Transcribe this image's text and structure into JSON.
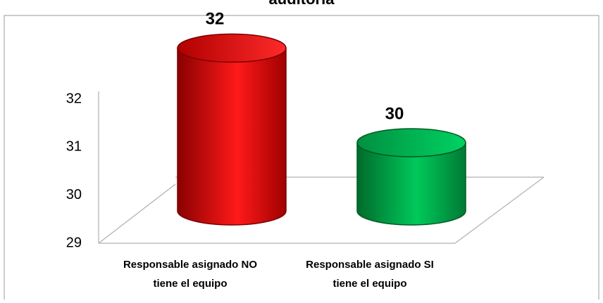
{
  "chart_data": {
    "type": "bar",
    "style": "3d-cylinder",
    "title": "auditoría",
    "categories": [
      [
        "Responsable asignado NO",
        "tiene el equipo"
      ],
      [
        "Responsable asignado SI",
        "tiene el equipo"
      ]
    ],
    "values": [
      32,
      30
    ],
    "data_labels": [
      "32",
      "30"
    ],
    "ylim": [
      29,
      32
    ],
    "yticks": [
      "29",
      "30",
      "31",
      "32"
    ],
    "ytick_values": [
      29,
      30,
      31,
      32
    ],
    "grid": false,
    "colors": {
      "series_1": "#e00000",
      "series_2": "#00a64a",
      "axis_lines": "#b0b0b0",
      "border": "#9a9a9a"
    }
  }
}
